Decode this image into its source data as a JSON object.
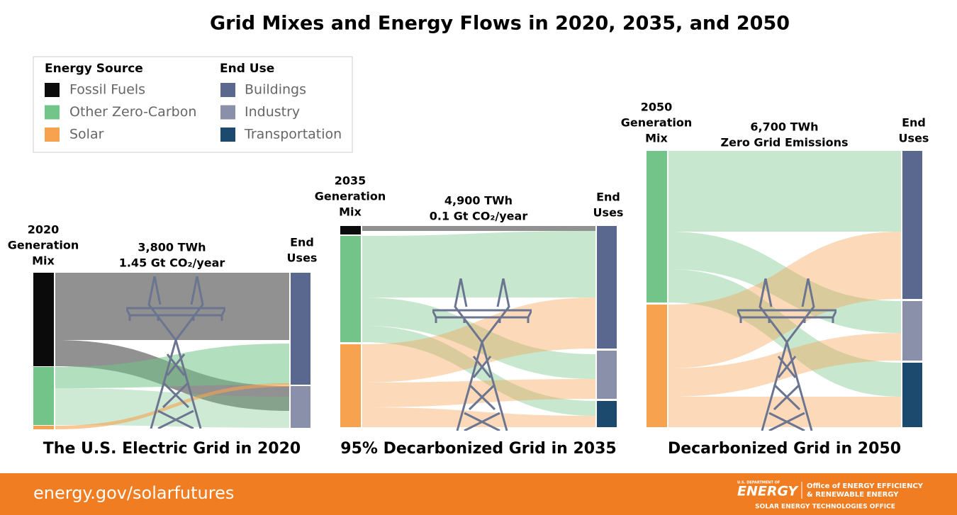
{
  "title": "Grid Mixes and Energy Flows in 2020, 2035, and 2050",
  "legend": {
    "source_title": "Energy Source",
    "sources": [
      {
        "label": "Fossil Fuels",
        "color": "#0b0b0b"
      },
      {
        "label": "Other Zero-Carbon",
        "color": "#72c488"
      },
      {
        "label": "Solar",
        "color": "#f7a24f"
      }
    ],
    "use_title": "End Use",
    "uses": [
      {
        "label": "Buildings",
        "color": "#5a6890"
      },
      {
        "label": "Industry",
        "color": "#8a90aa"
      },
      {
        "label": "Transportation",
        "color": "#1b4a6e"
      }
    ]
  },
  "panels": [
    {
      "mix_label": [
        "2020",
        "Generation",
        "Mix"
      ],
      "total": "3,800 TWh",
      "emissions": "1.45 Gt CO₂/year",
      "end_label": [
        "End",
        "Uses"
      ],
      "caption": "The U.S. Electric Grid in 2020"
    },
    {
      "mix_label": [
        "2035",
        "Generation",
        "Mix"
      ],
      "total": "4,900 TWh",
      "emissions": "0.1 Gt CO₂/year",
      "end_label": [
        "End",
        "Uses"
      ],
      "caption": "95% Decarbonized Grid in 2035"
    },
    {
      "mix_label": [
        "2050",
        "Generation",
        "Mix"
      ],
      "total": "6,700 TWh",
      "emissions": "Zero Grid Emissions",
      "end_label": [
        "End",
        "Uses"
      ],
      "caption": "Decarbonized Grid in 2050"
    }
  ],
  "footer": {
    "url": "energy.gov/solarfutures",
    "logo": {
      "dept": "U.S. DEPARTMENT OF",
      "name": "ENERGY",
      "office": [
        "Office of ENERGY EFFICIENCY",
        "& RENEWABLE ENERGY"
      ],
      "sub": "SOLAR ENERGY TECHNOLOGIES OFFICE"
    }
  }
}
